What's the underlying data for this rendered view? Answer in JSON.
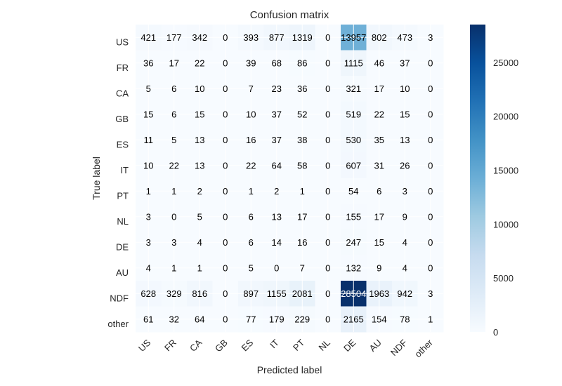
{
  "chart_data": {
    "type": "heatmap",
    "title": "Confusion matrix",
    "xlabel": "Predicted label",
    "ylabel": "True label",
    "x_categories": [
      "US",
      "FR",
      "CA",
      "GB",
      "ES",
      "IT",
      "PT",
      "NL",
      "DE",
      "AU",
      "NDF",
      "other"
    ],
    "y_categories": [
      "US",
      "FR",
      "CA",
      "GB",
      "ES",
      "IT",
      "PT",
      "NL",
      "DE",
      "AU",
      "NDF",
      "other"
    ],
    "values": [
      [
        421,
        177,
        342,
        0,
        393,
        877,
        1319,
        0,
        13957,
        802,
        473,
        3
      ],
      [
        36,
        17,
        22,
        0,
        39,
        68,
        86,
        0,
        1115,
        46,
        37,
        0
      ],
      [
        5,
        6,
        10,
        0,
        7,
        23,
        36,
        0,
        321,
        17,
        10,
        0
      ],
      [
        15,
        6,
        15,
        0,
        10,
        37,
        52,
        0,
        519,
        22,
        15,
        0
      ],
      [
        11,
        5,
        13,
        0,
        16,
        37,
        38,
        0,
        530,
        35,
        13,
        0
      ],
      [
        10,
        22,
        13,
        0,
        22,
        64,
        58,
        0,
        607,
        31,
        26,
        0
      ],
      [
        1,
        1,
        2,
        0,
        1,
        2,
        1,
        0,
        54,
        6,
        3,
        0
      ],
      [
        3,
        0,
        5,
        0,
        6,
        13,
        17,
        0,
        155,
        17,
        9,
        0
      ],
      [
        3,
        3,
        4,
        0,
        6,
        14,
        16,
        0,
        247,
        15,
        4,
        0
      ],
      [
        4,
        1,
        1,
        0,
        5,
        0,
        7,
        0,
        132,
        9,
        4,
        0
      ],
      [
        628,
        329,
        816,
        0,
        897,
        1155,
        2081,
        0,
        28504,
        1963,
        942,
        3
      ],
      [
        61,
        32,
        64,
        0,
        77,
        179,
        229,
        0,
        2165,
        154,
        78,
        1
      ]
    ],
    "colormap": "Blues",
    "colorbar": {
      "range": [
        0,
        28504
      ],
      "ticks": [
        0,
        5000,
        10000,
        15000,
        20000,
        25000
      ]
    },
    "grid": true,
    "colors": {
      "low": "#f7fbff",
      "high": "#08306b",
      "text_dark": "#000000",
      "text_light": "#ffffff",
      "grid_line": "#ffffff"
    }
  }
}
